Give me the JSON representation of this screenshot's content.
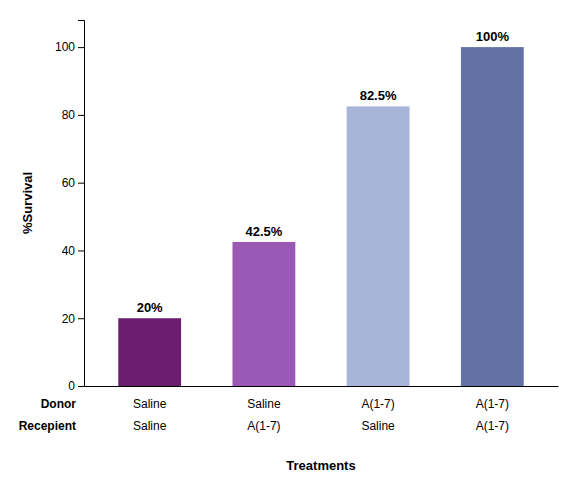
{
  "chart_data": {
    "type": "bar",
    "categories": [
      [
        "Saline",
        "Saline"
      ],
      [
        "Saline",
        "A(1-7)"
      ],
      [
        "A(1-7)",
        "Saline"
      ],
      [
        "A(1-7)",
        "A(1-7)"
      ]
    ],
    "annotations": [
      "Donor",
      "Recepient"
    ],
    "values": [
      20,
      42.5,
      82.5,
      100
    ],
    "value_labels": [
      "20%",
      "42.5%",
      "82.5%",
      "100%"
    ],
    "data_labels": true,
    "colors": [
      "#6B1E6E",
      "#9B59B6",
      "#A8B4D8",
      "#6272A4"
    ],
    "ylabel": "%Survival",
    "xlabel": "Treatments",
    "ylim": [
      0,
      108
    ],
    "yticks": [
      0,
      20,
      40,
      60,
      80,
      100
    ],
    "grid": false
  }
}
